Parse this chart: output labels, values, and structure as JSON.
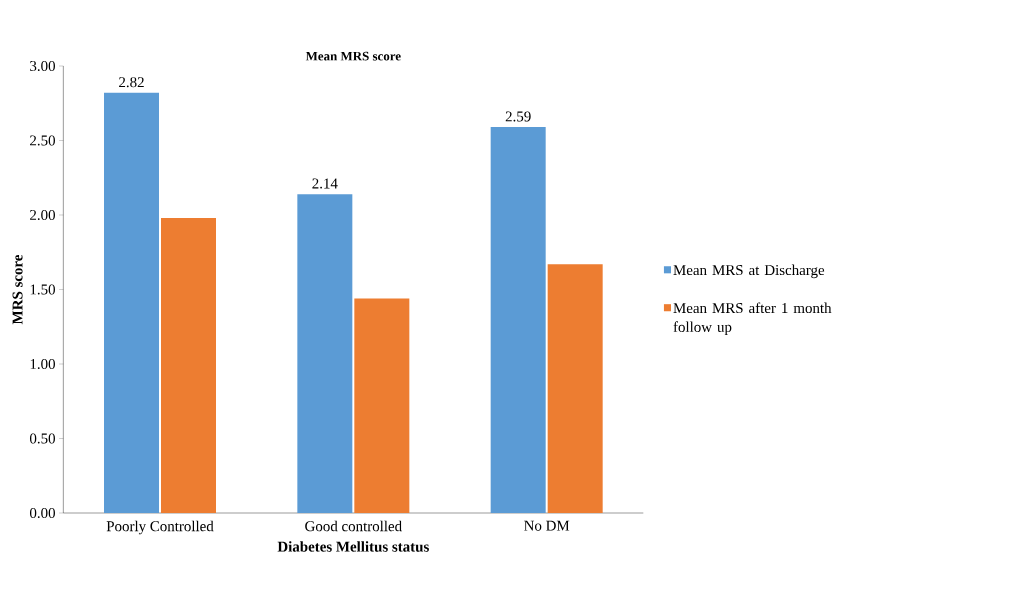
{
  "chart_data": {
    "type": "bar",
    "title": "Mean MRS score",
    "xlabel": "Diabetes Mellitus status",
    "ylabel": "MRS score",
    "categories": [
      "Poorly Controlled",
      "Good controlled",
      "No DM"
    ],
    "series": [
      {
        "name": "Mean MRS at Discharge",
        "color": "#5b9bd5",
        "values": [
          2.82,
          2.14,
          2.59
        ],
        "value_labels": [
          "2.82",
          "2.14",
          "2.59"
        ]
      },
      {
        "name": "Mean MRS after 1 month follow up",
        "color": "#ed7d31",
        "values": [
          1.98,
          1.44,
          1.67
        ]
      }
    ],
    "ylim": [
      0,
      3
    ],
    "yticks": [
      {
        "value": 0,
        "label": "0.00"
      },
      {
        "value": 0.5,
        "label": "0.50"
      },
      {
        "value": 1,
        "label": "1.00"
      },
      {
        "value": 1.5,
        "label": "1.50"
      },
      {
        "value": 2,
        "label": "2.00"
      },
      {
        "value": 2.5,
        "label": "2.50"
      },
      {
        "value": 3,
        "label": "3.00"
      }
    ],
    "legend": "right"
  }
}
